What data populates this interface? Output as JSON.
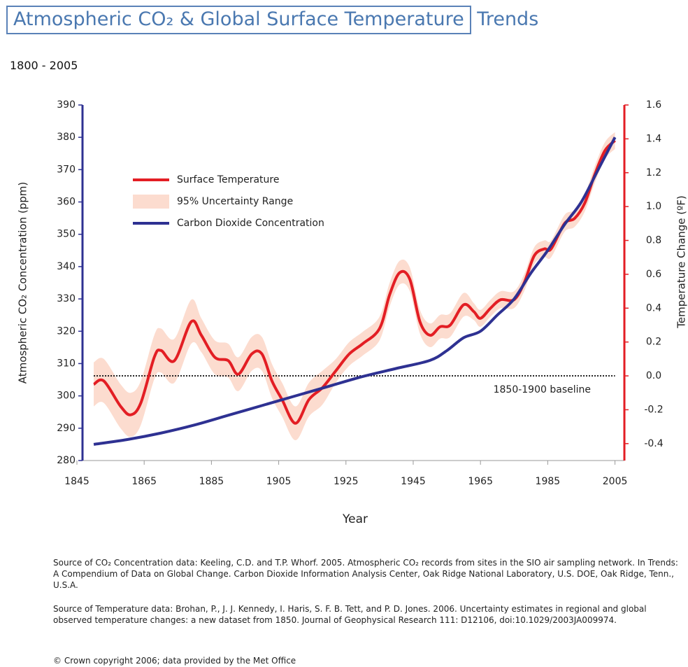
{
  "chart_data": {
    "type": "line",
    "title": "Atmospheric CO₂ & Global Surface Temperature",
    "title_suffix": "Trends",
    "subtitle": "1800 - 2005",
    "x_label": "Year",
    "y_label": "Atmospheric CO₂ Concentration (ppm)",
    "y2_label": "Temperature Change (ºF)",
    "xlim": [
      1845,
      2008
    ],
    "xticks": [
      1845,
      1865,
      1885,
      1905,
      1925,
      1945,
      1965,
      1985,
      2005
    ],
    "ylim": [
      280,
      390
    ],
    "yticks": [
      280,
      290,
      300,
      310,
      320,
      330,
      340,
      350,
      360,
      370,
      380,
      390
    ],
    "y2lim": [
      -0.5,
      1.6
    ],
    "y2ticks": [
      -0.4,
      -0.2,
      {
        "value": 0,
        "label": "0.0"
      },
      0.2,
      0.4,
      0.6,
      0.8,
      {
        "value": 1,
        "label": "1.0"
      },
      1.2,
      1.4,
      1.6
    ],
    "series": [
      {
        "name": "Surface Temperature",
        "color": "#e31e24",
        "axis": "y2",
        "x": [
          1850,
          1853,
          1858,
          1861,
          1864,
          1868,
          1870,
          1874,
          1879,
          1882,
          1886,
          1890,
          1893,
          1897,
          1900,
          1903,
          1906,
          1910,
          1914,
          1918,
          1922,
          1926,
          1930,
          1935,
          1938,
          1941,
          1944,
          1947,
          1950,
          1953,
          1956,
          1960,
          1963,
          1965,
          1968,
          1971,
          1975,
          1978,
          1981,
          1984,
          1986,
          1990,
          1993,
          1996,
          1999,
          2002,
          2005
        ],
        "values": [
          -0.05,
          -0.03,
          -0.18,
          -0.23,
          -0.16,
          0.11,
          0.15,
          0.09,
          0.32,
          0.24,
          0.11,
          0.09,
          0.01,
          0.13,
          0.13,
          -0.03,
          -0.14,
          -0.28,
          -0.14,
          -0.07,
          0.03,
          0.13,
          0.19,
          0.28,
          0.48,
          0.61,
          0.57,
          0.32,
          0.24,
          0.29,
          0.3,
          0.42,
          0.38,
          0.34,
          0.4,
          0.45,
          0.45,
          0.55,
          0.71,
          0.75,
          0.75,
          0.9,
          0.93,
          1.02,
          1.19,
          1.33,
          1.39
        ]
      },
      {
        "name": "95% Uncertainty Range",
        "color": "#fcdccf",
        "axis": "y2",
        "low": [
          -0.18,
          -0.16,
          -0.31,
          -0.36,
          -0.29,
          -0.02,
          0.02,
          -0.04,
          0.19,
          0.14,
          0.01,
          -0.01,
          -0.09,
          0.03,
          0.03,
          -0.13,
          -0.24,
          -0.38,
          -0.24,
          -0.17,
          -0.04,
          0.06,
          0.12,
          0.21,
          0.41,
          0.54,
          0.5,
          0.25,
          0.17,
          0.22,
          0.23,
          0.35,
          0.33,
          0.29,
          0.35,
          0.4,
          0.4,
          0.5,
          0.66,
          0.7,
          0.7,
          0.85,
          0.88,
          0.97,
          1.14,
          1.28,
          1.34
        ],
        "high": [
          0.08,
          0.1,
          -0.05,
          -0.1,
          -0.03,
          0.24,
          0.28,
          0.22,
          0.45,
          0.34,
          0.21,
          0.19,
          0.11,
          0.23,
          0.23,
          0.07,
          -0.04,
          -0.18,
          -0.04,
          0.03,
          0.1,
          0.2,
          0.26,
          0.35,
          0.55,
          0.68,
          0.64,
          0.39,
          0.31,
          0.36,
          0.37,
          0.49,
          0.43,
          0.39,
          0.45,
          0.5,
          0.5,
          0.6,
          0.76,
          0.8,
          0.8,
          0.95,
          0.98,
          1.07,
          1.24,
          1.38,
          1.44
        ]
      },
      {
        "name": "Carbon Dioxide Concentration",
        "color": "#2e3192",
        "x": [
          1850,
          1860,
          1870,
          1880,
          1890,
          1900,
          1910,
          1920,
          1930,
          1940,
          1950,
          1955,
          1960,
          1965,
          1970,
          1975,
          1980,
          1985,
          1990,
          1995,
          2000,
          2005
        ],
        "values": [
          285,
          286.5,
          288.5,
          291,
          294,
          297,
          300,
          303,
          306,
          308.5,
          311,
          314,
          318,
          320,
          325,
          330,
          338,
          345,
          353,
          360,
          370,
          380
        ]
      }
    ],
    "baseline": {
      "label": "1850-1900 baseline",
      "value": 0,
      "x": [
        1850,
        2005
      ]
    },
    "notes": [
      "Source of CO₂ Concentration data:  Keeling, C.D. and T.P. Whorf.   2005.   Atmospheric CO₂ records from sites in the SIO air sampling network.   In Trends: A Compendium of Data on Global Change. Carbon Dioxide Information Analysis Center, Oak Ridge National Laboratory, U.S. DOE, Oak Ridge, Tenn., U.S.A.",
      "Source of Temperature data: Brohan, P., J. J. Kennedy, I. Haris, S. F. B. Tett, and P. D. Jones.  2006.   Uncertainty estimates in regional and global observed temperature changes: a new dataset from 1850.   Journal of Geophysical Research 111: D12106, doi:10.1029/2003JA009974.",
      "© Crown copyright 2006;  data provided by the Met Office"
    ]
  }
}
